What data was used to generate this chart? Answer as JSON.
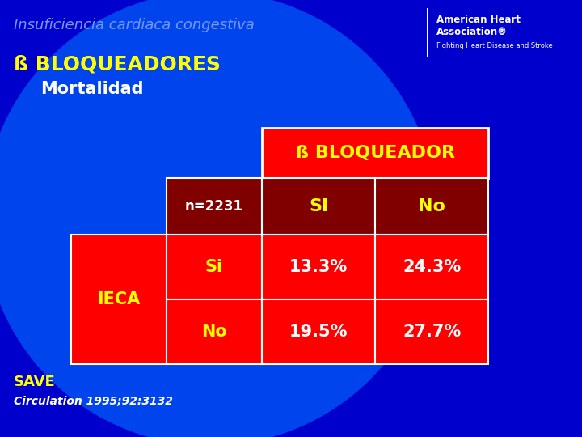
{
  "title": "Insuficiencia cardiaca congestiva",
  "subtitle1": "ß BLOQUEADORES",
  "subtitle2": "Mortalidad",
  "bg_color": "#0000CC",
  "header_label": "ß BLOQUEADOR",
  "n_label": "n=2231",
  "col_si": "SI",
  "col_no": "No",
  "row_ieca": "IECA",
  "row_si": "Si",
  "row_no": "No",
  "val_si_si": "13.3%",
  "val_si_no": "24.3%",
  "val_no_si": "19.5%",
  "val_no_no": "27.7%",
  "save_label": "SAVE",
  "citation": "Circulation 1995;92:3132",
  "red_bright": "#FF0000",
  "red_dark": "#800000",
  "yellow": "#FFFF00",
  "white": "#FFFFFF",
  "title_color": "#7799FF",
  "bg_gradient_center": "#0033CC",
  "bg_gradient_edge": "#000099"
}
